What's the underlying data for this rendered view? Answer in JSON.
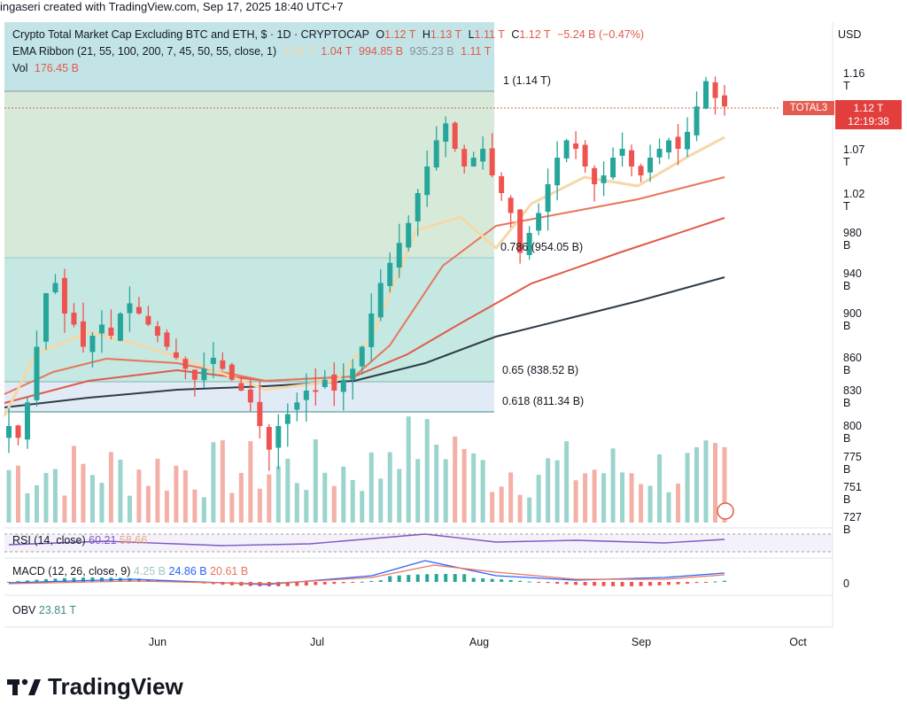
{
  "attribution": "ingaseri created with TradingView.com, Sep 17, 2025 18:40 UTC+7",
  "legend": {
    "title": "Crypto Total Market Cap Excluding BTC and ETH, $ · 1D · CRYPTOCAP",
    "o_k": "O",
    "o_v": "1.12 T",
    "h_k": "H",
    "h_v": "1.13 T",
    "l_k": "L",
    "l_v": "1.11 T",
    "c_k": "C",
    "c_v": "1.12 T",
    "change": "−5.24 B (−0.47%)",
    "ema_label": "EMA Ribbon (21, 55, 100, 200, 7, 45, 50, 55, close, 1)",
    "ema_v1": "1.08 T",
    "ema_v2": "1.04 T",
    "ema_v3": "994.85 B",
    "ema_v4": "935.23 B",
    "ema_v5": "1.11 T",
    "vol_label": "Vol",
    "vol_v": "176.45 B"
  },
  "currency": "USD",
  "symbol_badge": "TOTAL3",
  "price_badge": {
    "price": "1.12 T",
    "countdown": "12:19:38"
  },
  "fib_levels": [
    {
      "text": "1 (1.14 T)",
      "color": "#8a8e99"
    },
    {
      "text": "0.786 (954.05 B)",
      "color": "#9cc8c4"
    },
    {
      "text": "0.65 (838.52 B)",
      "color": "#8a8e99"
    },
    {
      "text": "0.618 (811.34 B)",
      "color": "#3d8b87"
    }
  ],
  "indicators": {
    "rsi_label": "RSI (14, close)",
    "rsi_v1": "60.21",
    "rsi_v2": "58.66",
    "macd_label": "MACD (12, 26, close, 9)",
    "macd_v1": "4.25 B",
    "macd_v2": "24.86 B",
    "macd_v3": "20.61 B",
    "macd_zero": "0",
    "obv_label": "OBV",
    "obv_v": "23.81 T"
  },
  "brand": "TradingView",
  "colors": {
    "up": "#26a69a",
    "down": "#ef5350",
    "ema_cream": "#f5d7a8",
    "ema_orange": "#e8765a",
    "ema_red": "#e05a4a",
    "ema_dark": "#2f3b47"
  },
  "chart_data": {
    "type": "candlestick",
    "y_axis_ticks": [
      "1.16 T",
      "1.07 T",
      "1.02 T",
      "980 B",
      "940 B",
      "900 B",
      "860 B",
      "830 B",
      "800 B",
      "775 B",
      "751 B",
      "727 B"
    ],
    "x_axis_ticks": [
      "Jun",
      "Jul",
      "Aug",
      "Sep",
      "Oct"
    ],
    "ohlc_close_T": [
      0.8,
      0.79,
      0.82,
      0.87,
      0.92,
      0.93,
      0.9,
      0.89,
      0.87,
      0.88,
      0.89,
      0.88,
      0.9,
      0.91,
      0.9,
      0.89,
      0.88,
      0.87,
      0.86,
      0.85,
      0.84,
      0.85,
      0.86,
      0.85,
      0.84,
      0.83,
      0.82,
      0.8,
      0.78,
      0.8,
      0.81,
      0.82,
      0.83,
      0.83,
      0.84,
      0.83,
      0.84,
      0.85,
      0.87,
      0.9,
      0.93,
      0.95,
      0.97,
      0.99,
      1.02,
      1.05,
      1.08,
      1.1,
      1.07,
      1.05,
      1.06,
      1.07,
      1.04,
      1.02,
      1.0,
      0.96,
      0.98,
      1.0,
      1.03,
      1.06,
      1.08,
      1.07,
      1.05,
      1.03,
      1.04,
      1.06,
      1.07,
      1.05,
      1.04,
      1.06,
      1.07,
      1.08,
      1.07,
      1.09,
      1.12,
      1.15,
      1.13,
      1.12
    ]
  }
}
